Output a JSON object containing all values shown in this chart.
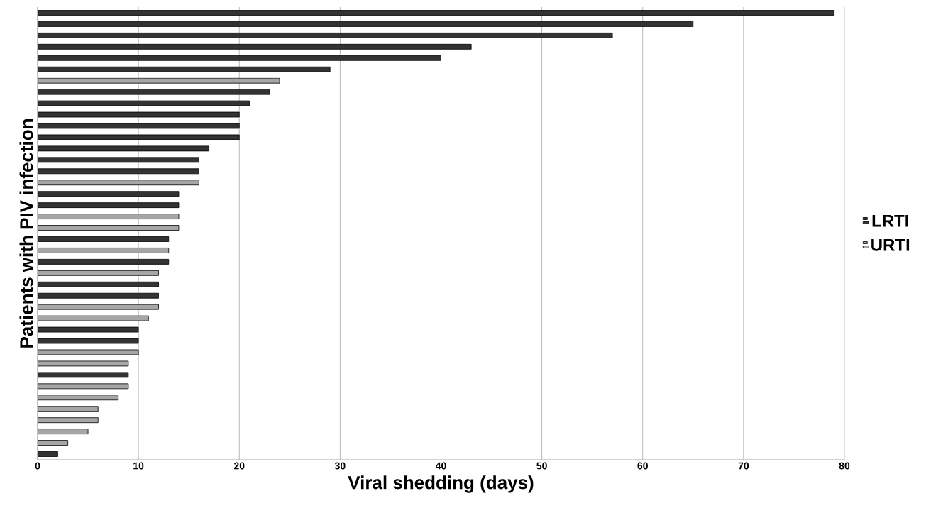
{
  "chart_data": {
    "type": "bar",
    "orientation": "horizontal",
    "xlabel": "Viral shedding (days)",
    "ylabel": "Patients with PIV infection",
    "categories": [
      null,
      null,
      null,
      null,
      null,
      null,
      null,
      null,
      null,
      null,
      null,
      null,
      null,
      null,
      null,
      null,
      null,
      null,
      null,
      null,
      null,
      null,
      null,
      null,
      null,
      null,
      null,
      null,
      null,
      null,
      null,
      null,
      null,
      null,
      null,
      null,
      null,
      null,
      null,
      null
    ],
    "series": [
      {
        "name": "LRTI",
        "color": "#333333",
        "values": [
          79,
          65,
          57,
          43,
          40,
          29,
          null,
          23,
          21,
          20,
          20,
          20,
          17,
          16,
          16,
          null,
          14,
          14,
          null,
          null,
          13,
          null,
          13,
          null,
          12,
          12,
          null,
          null,
          10,
          10,
          null,
          null,
          9,
          null,
          null,
          null,
          null,
          null,
          null,
          2
        ]
      },
      {
        "name": "URTI",
        "color": "#a6a6a6",
        "values": [
          null,
          null,
          null,
          null,
          null,
          null,
          24,
          null,
          null,
          null,
          null,
          null,
          null,
          null,
          null,
          16,
          null,
          null,
          14,
          14,
          null,
          13,
          null,
          12,
          null,
          null,
          12,
          11,
          null,
          null,
          10,
          9,
          null,
          9,
          8,
          6,
          6,
          5,
          3,
          null
        ]
      }
    ],
    "xlim": [
      0,
      80
    ],
    "xticks": [
      0,
      10,
      20,
      30,
      40,
      50,
      60,
      70,
      80
    ],
    "grid": "x",
    "legend": "right"
  }
}
